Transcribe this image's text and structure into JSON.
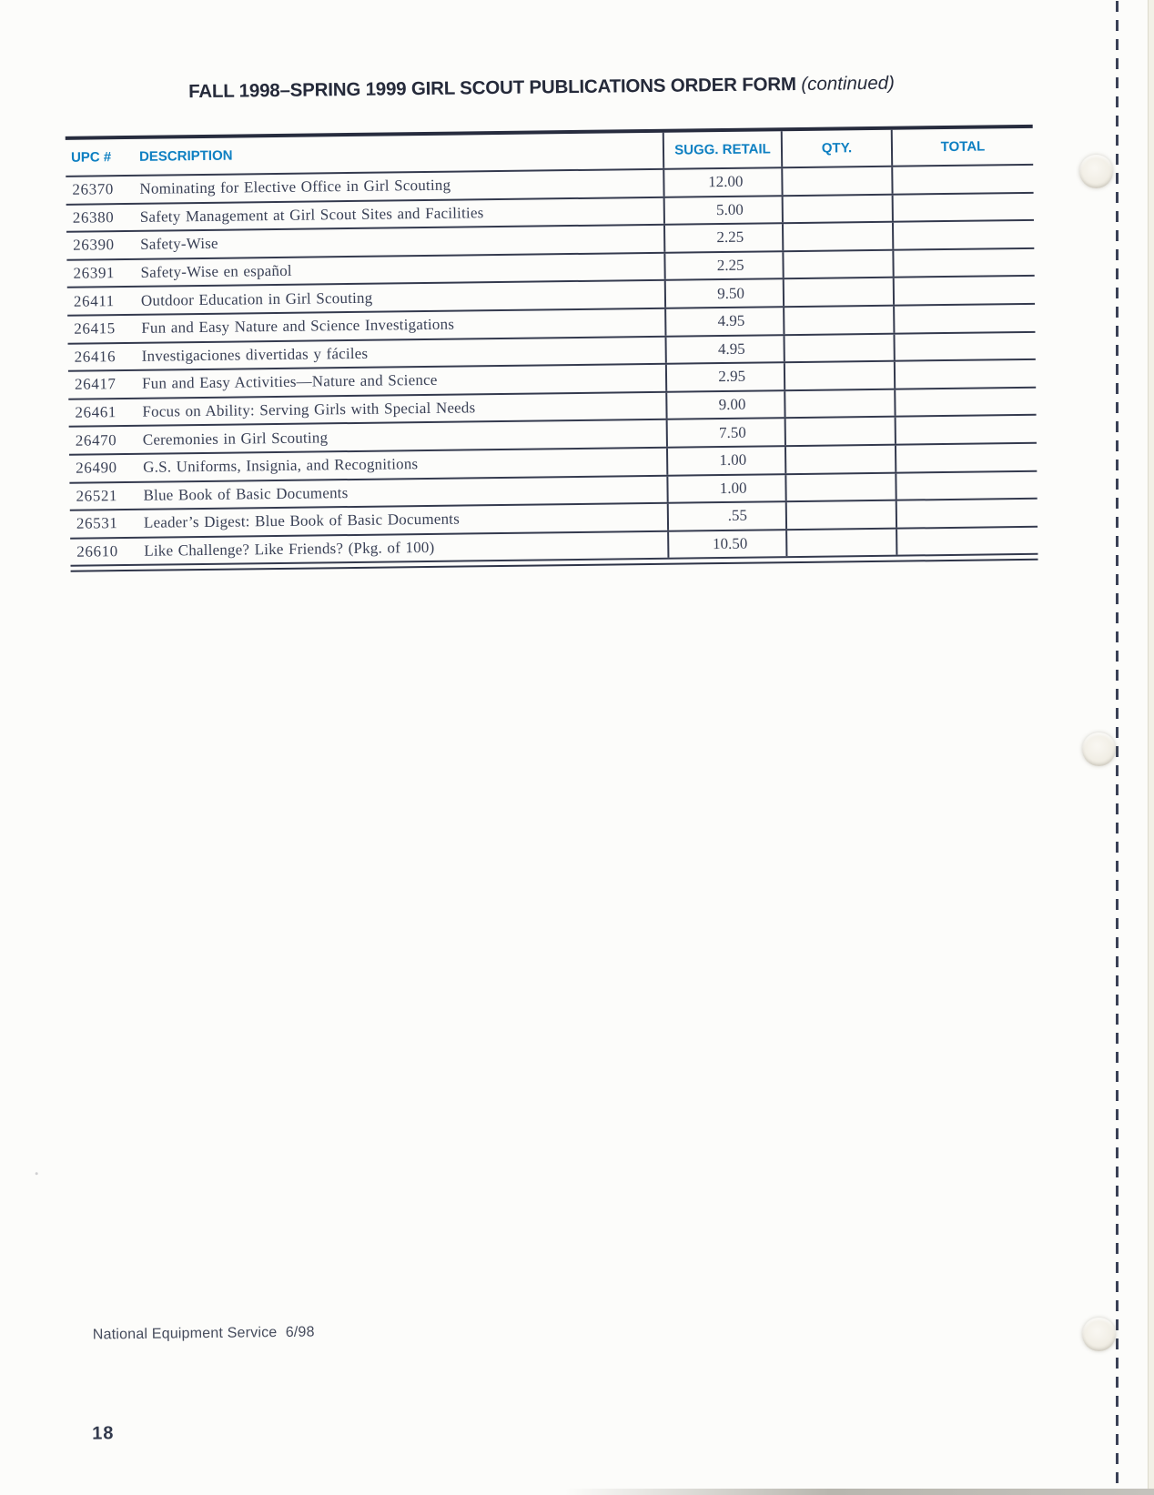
{
  "page": {
    "title": "FALL 1998–SPRING 1999 GIRL SCOUT PUBLICATIONS ORDER FORM",
    "title_note": "(continued)",
    "footer_text": "National Equipment Service  6/98",
    "page_number": "18"
  },
  "table": {
    "columns": [
      {
        "key": "upc",
        "label": "UPC #"
      },
      {
        "key": "description",
        "label": "DESCRIPTION"
      },
      {
        "key": "sugg_retail",
        "label": "SUGG. RETAIL"
      },
      {
        "key": "qty",
        "label": "QTY."
      },
      {
        "key": "total",
        "label": "TOTAL"
      }
    ],
    "rows": [
      {
        "upc": "26370",
        "description": "Nominating for Elective Office in Girl Scouting",
        "sugg_retail": "12.00",
        "qty": "",
        "total": ""
      },
      {
        "upc": "26380",
        "description": "Safety Management at Girl Scout Sites and Facilities",
        "sugg_retail": "5.00",
        "qty": "",
        "total": ""
      },
      {
        "upc": "26390",
        "description": "Safety-Wise",
        "sugg_retail": "2.25",
        "qty": "",
        "total": ""
      },
      {
        "upc": "26391",
        "description": "Safety-Wise en español",
        "sugg_retail": "2.25",
        "qty": "",
        "total": ""
      },
      {
        "upc": "26411",
        "description": "Outdoor Education in Girl Scouting",
        "sugg_retail": "9.50",
        "qty": "",
        "total": ""
      },
      {
        "upc": "26415",
        "description": "Fun and Easy Nature and Science Investigations",
        "sugg_retail": "4.95",
        "qty": "",
        "total": ""
      },
      {
        "upc": "26416",
        "description": "Investigaciones divertidas y fáciles",
        "sugg_retail": "4.95",
        "qty": "",
        "total": ""
      },
      {
        "upc": "26417",
        "description": "Fun and Easy Activities—Nature and Science",
        "sugg_retail": "2.95",
        "qty": "",
        "total": ""
      },
      {
        "upc": "26461",
        "description": "Focus on Ability: Serving Girls with Special Needs",
        "sugg_retail": "9.00",
        "qty": "",
        "total": ""
      },
      {
        "upc": "26470",
        "description": "Ceremonies in Girl Scouting",
        "sugg_retail": "7.50",
        "qty": "",
        "total": ""
      },
      {
        "upc": "26490",
        "description": "G.S. Uniforms, Insignia, and Recognitions",
        "sugg_retail": "1.00",
        "qty": "",
        "total": ""
      },
      {
        "upc": "26521",
        "description": "Blue Book of Basic Documents",
        "sugg_retail": "1.00",
        "qty": "",
        "total": ""
      },
      {
        "upc": "26531",
        "description": "Leader’s Digest: Blue Book of Basic Documents",
        "sugg_retail": ".55",
        "qty": "",
        "total": ""
      },
      {
        "upc": "26610",
        "description": "Like Challenge? Like Friends?  (Pkg. of 100)",
        "sugg_retail": "10.50",
        "qty": "",
        "total": ""
      }
    ]
  },
  "colors": {
    "header_blue": "#0f80c2",
    "body_ink": "#3a4156",
    "title_ink": "#252a3a",
    "rule_line": "#343a4e",
    "paper": "#fcfcfa"
  }
}
